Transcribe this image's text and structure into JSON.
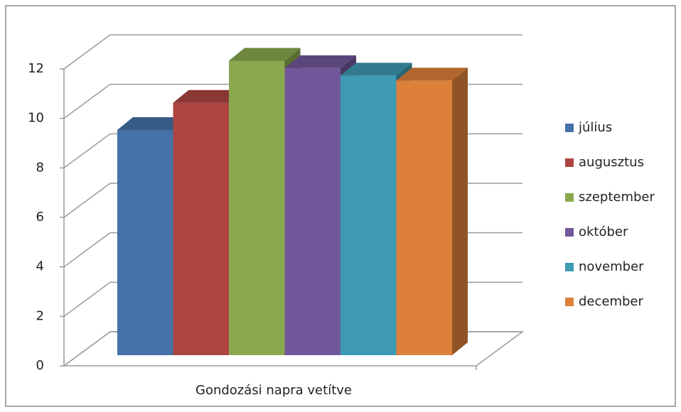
{
  "chart_data": {
    "type": "bar3d",
    "categories": [
      "Gondozási napra vetítve"
    ],
    "series": [
      {
        "name": "július",
        "color": "#4472a8",
        "values": [
          9.1
        ]
      },
      {
        "name": "augusztus",
        "color": "#ad4542",
        "values": [
          10.2
        ]
      },
      {
        "name": "szeptember",
        "color": "#8aa94f",
        "values": [
          11.9
        ]
      },
      {
        "name": "október",
        "color": "#72589a",
        "values": [
          11.6
        ]
      },
      {
        "name": "november",
        "color": "#3f9ab3",
        "values": [
          11.3
        ]
      },
      {
        "name": "december",
        "color": "#dc803a",
        "values": [
          11.1
        ]
      }
    ],
    "ylim": [
      0,
      12
    ],
    "yticks": [
      0,
      2,
      4,
      6,
      8,
      10,
      12
    ],
    "grid": true,
    "legend": "right"
  }
}
